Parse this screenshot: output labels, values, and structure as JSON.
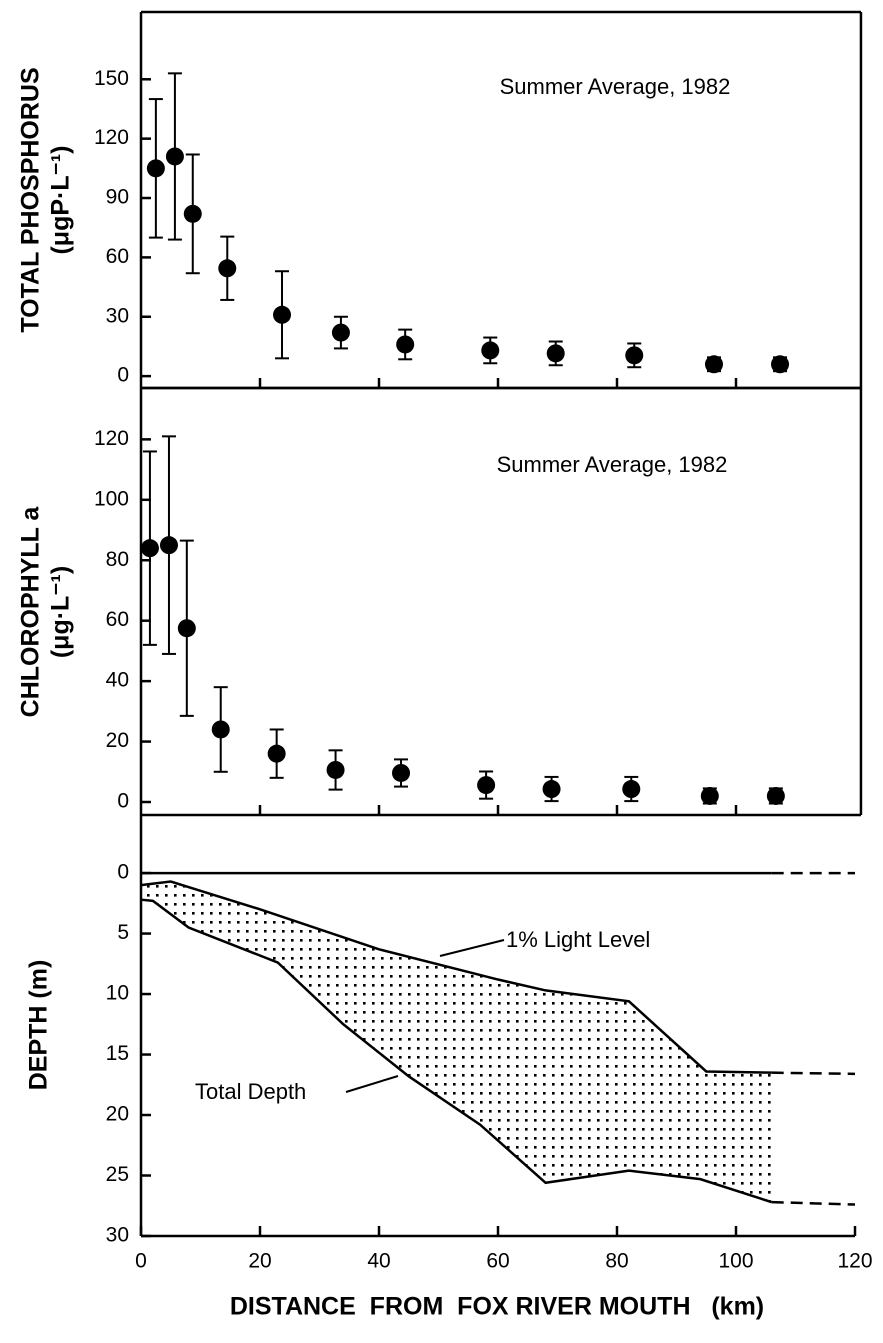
{
  "chart_data": [
    {
      "type": "scatter",
      "y_label": [
        "TOTAL PHOSPHORUS",
        "(μgP·L⁻¹)"
      ],
      "annotation": "Summer Average, 1982",
      "x": [
        2.5,
        5.7,
        8.7,
        14.5,
        23.7,
        33.6,
        44.4,
        58.7,
        69.7,
        82.9,
        96.3,
        107.4
      ],
      "values": [
        105,
        111,
        82,
        54.5,
        31,
        22,
        16,
        13,
        11.5,
        10.5,
        6,
        6
      ],
      "errors": [
        35,
        42,
        30,
        16,
        22,
        8,
        7.5,
        6.5,
        6,
        6,
        3.5,
        3.5
      ],
      "color": "#000000",
      "xlim": [
        0,
        121
      ],
      "xticks": [
        20,
        40,
        60,
        80,
        100
      ],
      "xtick_labels": false,
      "ylim": [
        -6,
        184
      ],
      "yticks": [
        0,
        30,
        60,
        90,
        120,
        150
      ]
    },
    {
      "type": "scatter",
      "y_label": [
        "CHLOROPHYLL a",
        "(μg·L⁻¹)"
      ],
      "annotation": "Summer Average, 1982",
      "x": [
        1.5,
        4.7,
        7.7,
        13.4,
        22.8,
        32.7,
        43.7,
        58,
        69,
        82.4,
        95.6,
        106.7
      ],
      "values": [
        84,
        85,
        57.5,
        24,
        16,
        10.6,
        9.6,
        5.6,
        4.3,
        4.3,
        2,
        2
      ],
      "errors": [
        32,
        36,
        29,
        14,
        8,
        6.5,
        4.5,
        4.5,
        4,
        4,
        2.5,
        2.5
      ],
      "color": "#000000",
      "xlim": [
        0,
        121
      ],
      "xticks": [
        20,
        40,
        60,
        80,
        100
      ],
      "xtick_labels": false,
      "ylim": [
        -4.3,
        137
      ],
      "yticks": [
        0,
        20,
        40,
        60,
        80,
        100,
        120
      ]
    },
    {
      "type": "line",
      "y_label": [
        "DEPTH (m)"
      ],
      "x_label": "DISTANCE  FROM  FOX RIVER MOUTH   (km)",
      "annotations": [
        "1% Light Level",
        "Total Depth"
      ],
      "series": [
        {
          "x": [
            0,
            5,
            20,
            40,
            60,
            68,
            82,
            95,
            106
          ],
          "values": [
            1.0,
            0.7,
            3.0,
            6.3,
            8.8,
            9.7,
            10.6,
            16.4,
            16.5
          ],
          "dashed": false
        },
        {
          "x": [
            0,
            2,
            8,
            23,
            34,
            45,
            57,
            68,
            82,
            94,
            106
          ],
          "values": [
            2.2,
            2.3,
            4.5,
            7.4,
            12.5,
            16.8,
            20.8,
            25.6,
            24.6,
            25.3,
            27.2
          ],
          "dashed": false
        },
        {
          "x": [
            0,
            106
          ],
          "values": [
            0,
            0
          ],
          "dashed": false
        },
        {
          "x": [
            106,
            120
          ],
          "values": [
            16.5,
            16.6
          ],
          "dashed": true
        },
        {
          "x": [
            106,
            120
          ],
          "values": [
            27.2,
            27.4
          ],
          "dashed": true
        },
        {
          "x": [
            106,
            120
          ],
          "values": [
            0,
            0
          ],
          "dashed": true
        }
      ],
      "fill_between": [
        0,
        1
      ],
      "color": "#000000",
      "xlim": [
        0,
        120
      ],
      "xticks": [
        0,
        20,
        40,
        60,
        80,
        100,
        120
      ],
      "xtick_labels": true,
      "ylim": [
        30,
        -4.8
      ],
      "yticks": [
        0,
        5,
        10,
        15,
        20,
        25,
        30
      ]
    }
  ]
}
